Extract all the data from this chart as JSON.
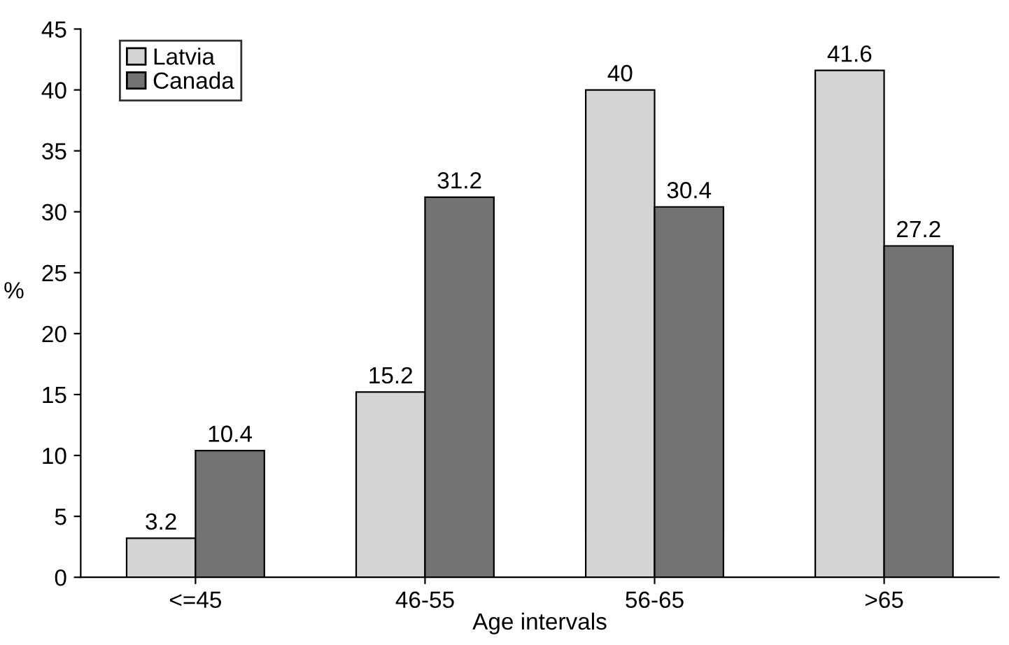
{
  "chart_data": {
    "type": "bar",
    "xlabel": "Age intervals",
    "ylabel": "%",
    "categories": [
      "<=45",
      "46-55",
      "56-65",
      ">65"
    ],
    "series": [
      {
        "name": "Latvia",
        "color": "#d4d4d4",
        "values": [
          3.2,
          15.2,
          40,
          41.6
        ]
      },
      {
        "name": "Canada",
        "color": "#737373",
        "values": [
          10.4,
          31.2,
          30.4,
          27.2
        ]
      }
    ],
    "ylim": [
      0,
      45
    ],
    "yticks": [
      0,
      5,
      10,
      15,
      20,
      25,
      30,
      35,
      40,
      45
    ],
    "data_labels": true,
    "grid": false,
    "legend": "top left"
  }
}
